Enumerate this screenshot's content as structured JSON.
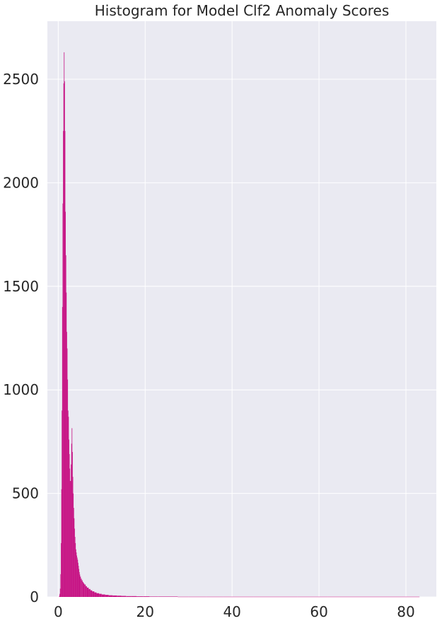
{
  "chart_data": {
    "type": "bar",
    "title": "Histogram for Model Clf2 Anomaly Scores",
    "xlabel": "",
    "ylabel": "",
    "xlim": [
      -2.5,
      87
    ],
    "ylim": [
      0,
      2780
    ],
    "x_ticks": [
      0,
      20,
      40,
      60,
      80
    ],
    "y_ticks": [
      0,
      500,
      1000,
      1500,
      2000,
      2500
    ],
    "grid": true,
    "legend": "none",
    "background_color": "#eaeaf2",
    "bar_color": "#c71585",
    "bin_width": 0.1,
    "bins": [
      [
        0.2,
        5
      ],
      [
        0.3,
        15
      ],
      [
        0.4,
        40
      ],
      [
        0.5,
        110
      ],
      [
        0.6,
        260
      ],
      [
        0.7,
        520
      ],
      [
        0.8,
        900
      ],
      [
        0.9,
        1400
      ],
      [
        1.0,
        1900
      ],
      [
        1.1,
        2250
      ],
      [
        1.2,
        2480
      ],
      [
        1.3,
        2630
      ],
      [
        1.4,
        2490
      ],
      [
        1.5,
        2250
      ],
      [
        1.6,
        1860
      ],
      [
        1.7,
        1650
      ],
      [
        1.8,
        1470
      ],
      [
        1.9,
        1280
      ],
      [
        2.0,
        1200
      ],
      [
        2.1,
        1050
      ],
      [
        2.2,
        900
      ],
      [
        2.3,
        870
      ],
      [
        2.4,
        760
      ],
      [
        2.5,
        690
      ],
      [
        2.6,
        620
      ],
      [
        2.7,
        560
      ],
      [
        2.8,
        560
      ],
      [
        2.9,
        640
      ],
      [
        3.0,
        740
      ],
      [
        3.1,
        815
      ],
      [
        3.2,
        700
      ],
      [
        3.3,
        580
      ],
      [
        3.4,
        500
      ],
      [
        3.5,
        430
      ],
      [
        3.6,
        380
      ],
      [
        3.7,
        330
      ],
      [
        3.8,
        290
      ],
      [
        3.9,
        260
      ],
      [
        4.0,
        230
      ],
      [
        4.1,
        215
      ],
      [
        4.2,
        200
      ],
      [
        4.3,
        190
      ],
      [
        4.4,
        180
      ],
      [
        4.5,
        165
      ],
      [
        4.6,
        150
      ],
      [
        4.7,
        135
      ],
      [
        4.8,
        120
      ],
      [
        4.9,
        108
      ],
      [
        5.0,
        98
      ],
      [
        5.2,
        88
      ],
      [
        5.4,
        80
      ],
      [
        5.6,
        72
      ],
      [
        5.8,
        66
      ],
      [
        6.0,
        60
      ],
      [
        6.3,
        52
      ],
      [
        6.6,
        45
      ],
      [
        7.0,
        38
      ],
      [
        7.4,
        32
      ],
      [
        7.8,
        27
      ],
      [
        8.3,
        22
      ],
      [
        8.8,
        18
      ],
      [
        9.4,
        15
      ],
      [
        10.0,
        12
      ],
      [
        10.8,
        10
      ],
      [
        11.6,
        8
      ],
      [
        12.5,
        7
      ],
      [
        13.5,
        6
      ],
      [
        14.5,
        5
      ],
      [
        15.6,
        4
      ],
      [
        16.8,
        4
      ],
      [
        18.0,
        3
      ],
      [
        19.5,
        3
      ],
      [
        21.0,
        2
      ],
      [
        23.0,
        2
      ],
      [
        25.0,
        2
      ],
      [
        27.5,
        1
      ],
      [
        30.0,
        1
      ],
      [
        34.0,
        1
      ],
      [
        38.0,
        1
      ],
      [
        45.0,
        1
      ],
      [
        55.0,
        1
      ],
      [
        62.0,
        1
      ],
      [
        83.0,
        1
      ]
    ]
  }
}
